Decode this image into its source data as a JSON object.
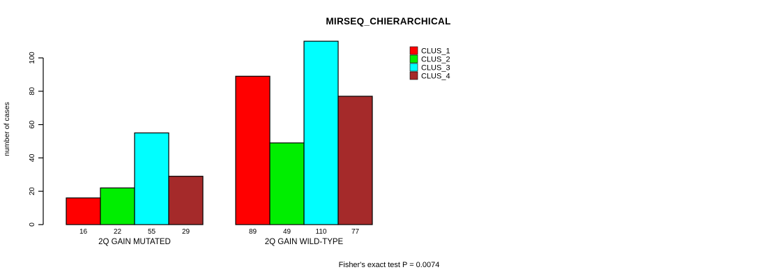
{
  "title": "MIRSEQ_CHIERARCHICAL",
  "footer": "Fisher's exact test P = 0.0074",
  "chart_data": {
    "type": "bar",
    "title": "MIRSEQ_CHIERARCHICAL",
    "xlabel": "",
    "ylabel": "number of cases",
    "categories": [
      "2Q GAIN MUTATED",
      "2Q GAIN WILD-TYPE"
    ],
    "series": [
      {
        "name": "CLUS_1",
        "color": "#FF0000",
        "values": [
          16,
          89
        ]
      },
      {
        "name": "CLUS_2",
        "color": "#00EE00",
        "values": [
          22,
          49
        ]
      },
      {
        "name": "CLUS_3",
        "color": "#00FFFF",
        "values": [
          55,
          110
        ]
      },
      {
        "name": "CLUS_4",
        "color": "#A52A2A",
        "values": [
          29,
          77
        ]
      }
    ],
    "bar_value_labels": [
      [
        16,
        22,
        55,
        29
      ],
      [
        89,
        49,
        110,
        77
      ]
    ],
    "yticks": [
      0,
      20,
      40,
      60,
      80,
      100
    ],
    "ylim": [
      0,
      115
    ],
    "grid": false,
    "legend_position": "top-right",
    "bar_border_color": "#000000",
    "annotation": "Fisher's exact test P = 0.0074"
  }
}
